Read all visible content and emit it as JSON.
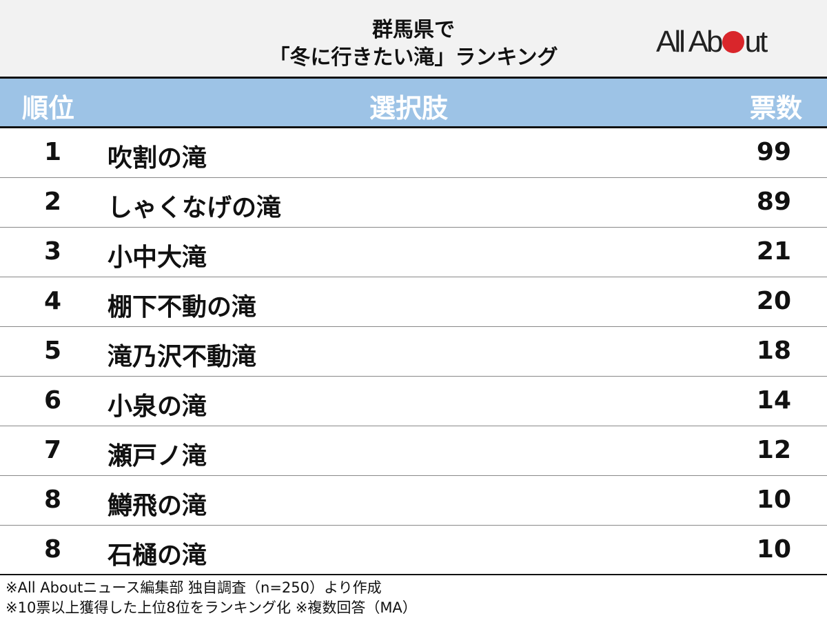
{
  "header": {
    "title_line1": "群馬県で",
    "title_line2": "「冬に行きたい滝」ランキング",
    "logo": "All About"
  },
  "columns": {
    "rank": "順位",
    "choice": "選択肢",
    "votes": "票数"
  },
  "chart_data": {
    "type": "table",
    "title": "群馬県で「冬に行きたい滝」ランキング",
    "columns": [
      "順位",
      "選択肢",
      "票数"
    ],
    "rows": [
      {
        "rank": "1",
        "name": "吹割の滝",
        "votes": "99"
      },
      {
        "rank": "2",
        "name": "しゃくなげの滝",
        "votes": "89"
      },
      {
        "rank": "3",
        "name": "小中大滝",
        "votes": "21"
      },
      {
        "rank": "4",
        "name": "棚下不動の滝",
        "votes": "20"
      },
      {
        "rank": "5",
        "name": "滝乃沢不動滝",
        "votes": "18"
      },
      {
        "rank": "6",
        "name": "小泉の滝",
        "votes": "14"
      },
      {
        "rank": "7",
        "name": "瀬戸ノ滝",
        "votes": "12"
      },
      {
        "rank": "8",
        "name": "鱒飛の滝",
        "votes": "10"
      },
      {
        "rank": "8",
        "name": "石樋の滝",
        "votes": "10"
      }
    ]
  },
  "footer": {
    "note1": "※All Aboutニュース編集部 独自調査（n=250）より作成",
    "note2": "※10票以上獲得した上位8位をランキング化 ※複数回答（MA）"
  },
  "colors": {
    "header_bg": "#9dc3e6",
    "title_bg": "#f2f2f2",
    "logo_dot": "#d9262b"
  }
}
